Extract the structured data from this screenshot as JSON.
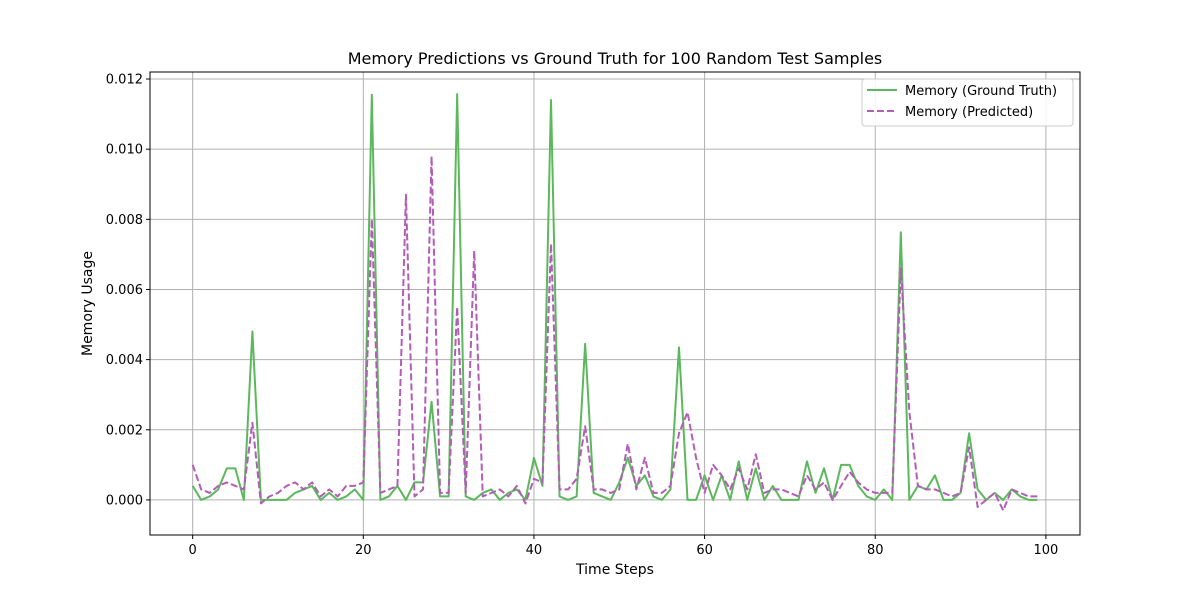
{
  "chart_data": {
    "type": "line",
    "title": "Memory Predictions vs Ground Truth for 100 Random Test Samples",
    "xlabel": "Time Steps",
    "ylabel": "Memory Usage",
    "xlim": [
      -5,
      104
    ],
    "ylim": [
      -0.001,
      0.0122
    ],
    "xticks": [
      0,
      20,
      40,
      60,
      80,
      100
    ],
    "yticks": [
      0.0,
      0.002,
      0.004,
      0.006,
      0.008,
      0.01,
      0.012
    ],
    "ytick_labels": [
      "0.000",
      "0.002",
      "0.004",
      "0.006",
      "0.008",
      "0.010",
      "0.012"
    ],
    "grid": true,
    "legend_position": "top-right",
    "series": [
      {
        "name": "Memory (Ground Truth)",
        "color": "#5cb85c",
        "style": "solid",
        "values": [
          0.0004,
          0.0,
          0.0001,
          0.0003,
          0.0009,
          0.0009,
          0.0,
          0.0048,
          0.0,
          0.0,
          0.0,
          0.0,
          0.0002,
          0.0003,
          0.0004,
          0.0,
          0.0002,
          0.0,
          0.0001,
          0.0003,
          0.0,
          0.01155,
          0.0,
          0.0001,
          0.0004,
          0.0,
          0.0005,
          0.0005,
          0.0028,
          0.0001,
          0.0001,
          0.01157,
          0.0001,
          0.0,
          0.0002,
          0.0003,
          0.0,
          0.0002,
          0.0003,
          0.0,
          0.0012,
          0.0004,
          0.0114,
          0.0001,
          0.0,
          0.0001,
          0.00445,
          0.0002,
          0.0001,
          0.0,
          0.0005,
          0.0012,
          0.0004,
          0.0007,
          0.0001,
          0.0,
          0.0003,
          0.00435,
          0.0,
          0.0,
          0.0007,
          0.0,
          0.0007,
          0.0,
          0.0011,
          0.0,
          0.0009,
          0.0,
          0.0004,
          0.0,
          0.0,
          0.0,
          0.0011,
          0.0002,
          0.0009,
          0.0,
          0.001,
          0.001,
          0.0004,
          0.0001,
          0.0,
          0.0003,
          0.0,
          0.00763,
          0.0,
          0.0004,
          0.0003,
          0.0007,
          0.0,
          0.0,
          0.0002,
          0.0019,
          0.0003,
          0.0,
          0.0002,
          0.0,
          0.0003,
          0.0001,
          0.0,
          0.0
        ]
      },
      {
        "name": "Memory (Predicted)",
        "color": "#b35cb8",
        "style": "dashed",
        "values": [
          0.001,
          0.0003,
          0.0002,
          0.0004,
          0.0005,
          0.0004,
          0.0003,
          0.0022,
          -0.0001,
          0.0001,
          0.0002,
          0.0004,
          0.0005,
          0.0003,
          0.0005,
          0.0001,
          0.0003,
          0.0001,
          0.0004,
          0.0004,
          0.0005,
          0.008,
          0.0002,
          0.0003,
          0.0004,
          0.0087,
          0.0001,
          0.0003,
          0.0098,
          0.0002,
          0.0002,
          0.0055,
          0.0002,
          0.0071,
          0.0001,
          0.0002,
          0.0003,
          0.0001,
          0.0004,
          -0.0001,
          0.0006,
          0.0005,
          0.0073,
          0.0003,
          0.0003,
          0.0006,
          0.0021,
          0.0003,
          0.0003,
          0.0002,
          0.0003,
          0.0016,
          0.0003,
          0.0012,
          0.0002,
          0.0002,
          0.0004,
          0.0019,
          0.0025,
          0.0012,
          0.0002,
          0.001,
          0.0007,
          0.0003,
          0.0009,
          0.0003,
          0.0013,
          0.0002,
          0.0003,
          0.0003,
          0.0002,
          0.0001,
          0.0007,
          0.0003,
          0.0005,
          0.0,
          0.0004,
          0.0008,
          0.0005,
          0.0003,
          0.0002,
          0.0002,
          0.0002,
          0.0066,
          0.0025,
          0.0004,
          0.0003,
          0.0003,
          0.0002,
          0.0001,
          0.0002,
          0.0015,
          -0.0002,
          0.0,
          0.0002,
          -0.0003,
          0.0003,
          0.0002,
          0.0001,
          0.0001
        ]
      }
    ]
  }
}
